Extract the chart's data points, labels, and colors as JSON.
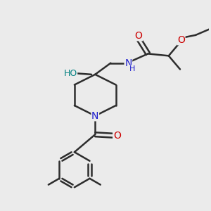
{
  "background_color": "#ebebeb",
  "bond_color": "#2d2d2d",
  "bond_width": 1.8,
  "atom_colors": {
    "C": "#2d2d2d",
    "N": "#1a1acc",
    "O": "#cc0000",
    "OH": "#008080"
  },
  "font_size": 9,
  "fig_size": [
    3.0,
    3.0
  ],
  "dpi": 100
}
